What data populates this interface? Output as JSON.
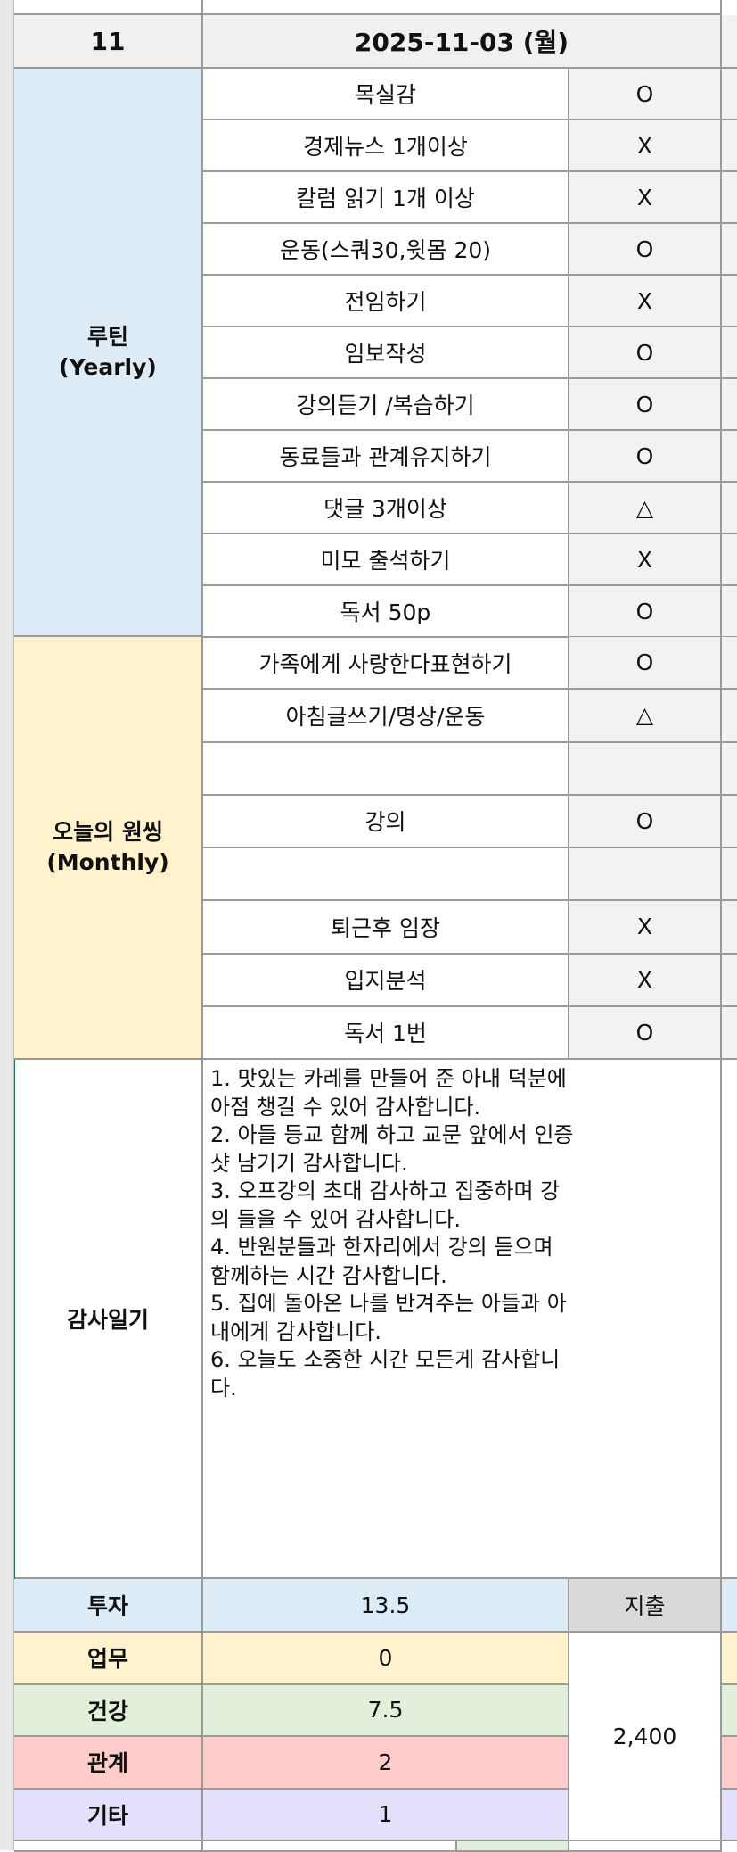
{
  "header": {
    "number": "11",
    "date": "2025-11-03 (월)"
  },
  "routine": {
    "label": "루틴\n(Yearly)",
    "items": [
      {
        "task": "목실감",
        "status": "O"
      },
      {
        "task": "경제뉴스 1개이상",
        "status": "X"
      },
      {
        "task": "칼럼 읽기 1개 이상",
        "status": "X"
      },
      {
        "task": "운동(스쿼30,윗몸 20)",
        "status": "O"
      },
      {
        "task": "전임하기",
        "status": "X"
      },
      {
        "task": "임보작성",
        "status": "O"
      },
      {
        "task": "강의듣기 /복습하기",
        "status": "O"
      },
      {
        "task": "동료들과 관계유지하기",
        "status": "O"
      },
      {
        "task": "댓글 3개이상",
        "status": "△"
      },
      {
        "task": "미모 출석하기",
        "status": "X"
      },
      {
        "task": "독서 50p",
        "status": "O"
      }
    ]
  },
  "monthly": {
    "label": "오늘의 원씽\n(Monthly)",
    "items": [
      {
        "task": "가족에게 사랑한다표현하기",
        "status": "O"
      },
      {
        "task": "아침글쓰기/명상/운동",
        "status": "△"
      },
      {
        "task": "",
        "status": ""
      },
      {
        "task": "강의",
        "status": "O"
      },
      {
        "task": "",
        "status": ""
      },
      {
        "task": "퇴근후 임장",
        "status": "X"
      },
      {
        "task": "입지분석",
        "status": "X"
      },
      {
        "task": "독서 1번",
        "status": "O"
      }
    ]
  },
  "gratitude": {
    "label": "감사일기",
    "lines": [
      "1. 맛있는 카레를 만들어 준 아내 덕분에",
      "아점 챙길 수 있어 감사합니다.",
      "2. 아들 등교 함께 하고 교문 앞에서 인증",
      "샷 남기기 감사합니다.",
      "3. 오프강의 초대 감사하고 집중하며 강",
      "의 들을 수 있어 감사합니다.",
      "4. 반원분들과 한자리에서 강의 듣으며",
      "함께하는 시간 감사합니다.",
      "5. 집에 돌아온 나를 반겨주는 아들과 아",
      "내에게 감사합니다.",
      "6. 오늘도 소중한 시간 모든게 감사합니",
      "다."
    ]
  },
  "time": [
    {
      "label": "투자",
      "value": "13.5",
      "color": "#ddebf7"
    },
    {
      "label": "업무",
      "value": "0",
      "color": "#fff2cc"
    },
    {
      "label": "건강",
      "value": "7.5",
      "color": "#e2efda"
    },
    {
      "label": "관계",
      "value": "2",
      "color": "#ffcccc"
    },
    {
      "label": "기타",
      "value": "1",
      "color": "#e4e0fb"
    }
  ],
  "expense": {
    "label": "지출",
    "value": "2,400"
  }
}
